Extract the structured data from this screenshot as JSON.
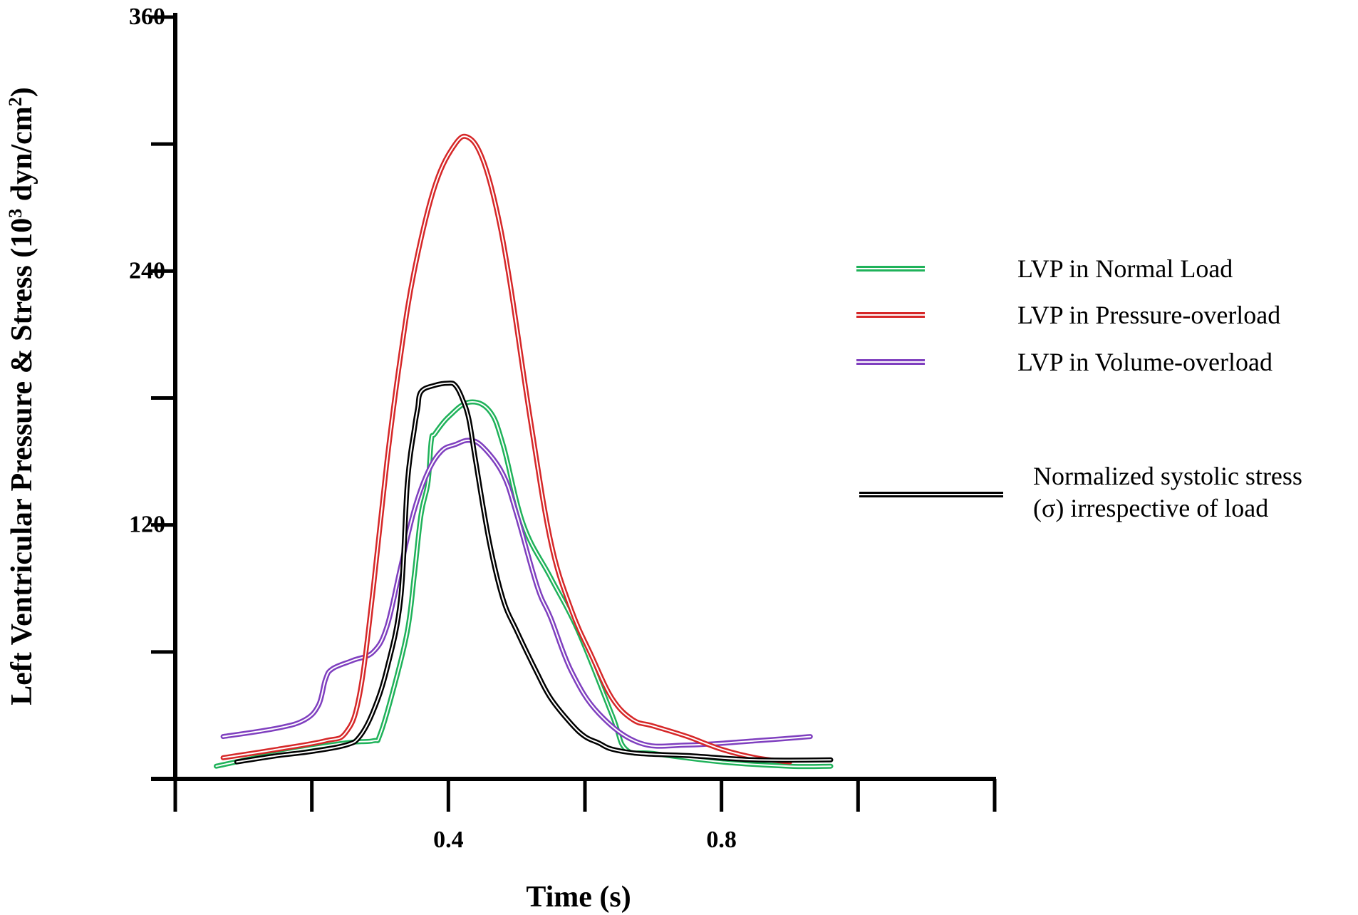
{
  "chart_data": {
    "type": "line",
    "title": "",
    "xlabel": "Time (s)",
    "ylabel_main": "Left Ventricular Pressure & Stress  (10",
    "ylabel_sup1": "3",
    "ylabel_mid": " dyn/cm",
    "ylabel_sup2": "2",
    "ylabel_end": ")",
    "xlim": [
      0,
      1.2
    ],
    "ylim": [
      0,
      360
    ],
    "x_ticks": [
      0,
      0.2,
      0.4,
      0.6,
      0.8,
      1.0,
      1.2
    ],
    "x_tick_labels": [
      {
        "value": 0.4,
        "label": "0.4"
      },
      {
        "value": 0.8,
        "label": "0.8"
      }
    ],
    "y_ticks": [
      0,
      60,
      120,
      180,
      240,
      300,
      360
    ],
    "y_tick_labels": [
      {
        "value": 120,
        "label": "120"
      },
      {
        "value": 240,
        "label": "240"
      },
      {
        "value": 360,
        "label": "360"
      }
    ],
    "legend_position": "right",
    "series": [
      {
        "name": "LVP in Normal Load",
        "color": "#1fb25a",
        "x": [
          0.06,
          0.15,
          0.25,
          0.29,
          0.3,
          0.32,
          0.34,
          0.35,
          0.36,
          0.37,
          0.375,
          0.38,
          0.4,
          0.43,
          0.46,
          0.48,
          0.51,
          0.55,
          0.59,
          0.64,
          0.66,
          0.7,
          0.8,
          0.9,
          0.96
        ],
        "y": [
          6,
          12,
          17,
          18,
          21,
          43,
          70,
          96,
          125,
          140,
          160,
          163,
          171,
          178,
          174,
          158,
          120,
          95,
          70,
          30,
          14,
          12,
          8,
          6,
          6
        ],
        "legend_label": "LVP in Normal Load"
      },
      {
        "name": "LVP in Pressure-overload",
        "color": "#d62728",
        "x": [
          0.07,
          0.15,
          0.22,
          0.25,
          0.27,
          0.29,
          0.31,
          0.33,
          0.35,
          0.38,
          0.41,
          0.43,
          0.45,
          0.47,
          0.49,
          0.52,
          0.55,
          0.58,
          0.61,
          0.64,
          0.67,
          0.7,
          0.75,
          0.8,
          0.85,
          0.9
        ],
        "y": [
          10,
          14,
          18,
          22,
          40,
          90,
          150,
          200,
          240,
          280,
          300,
          303,
          293,
          270,
          235,
          170,
          112,
          80,
          58,
          38,
          28,
          25,
          20,
          14,
          10,
          8
        ],
        "legend_label": "LVP in Pressure-overload"
      },
      {
        "name": "LVP in Volume-overload",
        "color": "#7f3fbf",
        "x": [
          0.07,
          0.15,
          0.19,
          0.21,
          0.22,
          0.23,
          0.26,
          0.29,
          0.31,
          0.33,
          0.35,
          0.37,
          0.39,
          0.41,
          0.43,
          0.45,
          0.48,
          0.5,
          0.53,
          0.55,
          0.58,
          0.62,
          0.68,
          0.75,
          0.85,
          0.93
        ],
        "y": [
          20,
          24,
          28,
          35,
          47,
          52,
          56,
          60,
          72,
          100,
          127,
          145,
          155,
          158,
          160,
          157,
          144,
          125,
          91,
          76,
          51,
          31,
          17,
          16,
          18,
          20
        ],
        "legend_label": "LVP in Volume-overload"
      },
      {
        "name": "Normalized systolic stress (σ) irrespective of load",
        "color": "#000000",
        "x": [
          0.09,
          0.15,
          0.2,
          0.25,
          0.27,
          0.29,
          0.31,
          0.33,
          0.34,
          0.35,
          0.355,
          0.36,
          0.38,
          0.4,
          0.41,
          0.42,
          0.43,
          0.44,
          0.46,
          0.48,
          0.5,
          0.53,
          0.55,
          0.58,
          0.6,
          0.62,
          0.64,
          0.68,
          0.75,
          0.85,
          0.96
        ],
        "y": [
          8,
          11,
          13,
          16,
          20,
          32,
          52,
          85,
          140,
          165,
          175,
          183,
          186,
          187,
          186,
          180,
          170,
          150,
          112,
          85,
          70,
          50,
          38,
          26,
          20,
          17,
          14,
          12,
          11,
          9,
          9
        ],
        "legend_label": "Normalized systolic stress (σ) irrespective of load",
        "legend_label_line1": "Normalized systolic stress",
        "legend_label_line2": "(σ) irrespective of load"
      }
    ]
  }
}
